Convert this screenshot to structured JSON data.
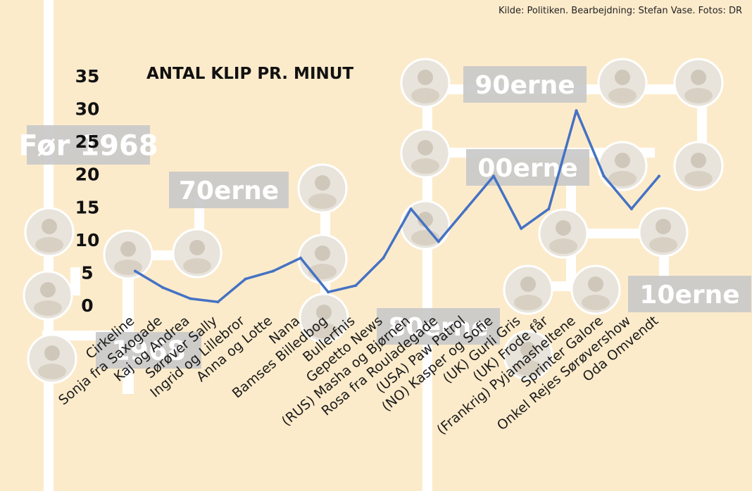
{
  "source": "Kilde: Politiken. Bearbejdning: Stefan Vase. Fotos: DR",
  "decades": [
    "Før 1968",
    "1968",
    "70erne",
    "80erne",
    "90erne",
    "00erne",
    "10erne"
  ],
  "chart_data": {
    "type": "line",
    "title": "ANTAL KLIP PR. MINUT",
    "categories": [
      "Cirkeline",
      "Sonja fra Saxogade",
      "Kaj og Andrea",
      "Sørøver Sally",
      "Ingrid og Lillebror",
      "Anna og Lotte",
      "Nana",
      "Bamses Billedbog",
      "Bullerfnis",
      "Gepetto News",
      "(RUS) Masha og Bjørnen",
      "Rosa fra Rouladegade",
      "(USA) Paw Patrol",
      "(NO) Kasper og Sofie",
      "(UK) Gurli Gris",
      "(UK) Frode får",
      "(Frankrig) Pyjamasheltene",
      "Sprinter Galore",
      "Onkel Rejes Sørøvershow",
      "Oda Omvendt"
    ],
    "values": [
      5,
      2.5,
      0.8,
      0.3,
      3.8,
      5,
      7,
      1.8,
      2.8,
      7,
      14.5,
      9.5,
      14.5,
      19.5,
      11.5,
      14.5,
      29.5,
      19.5,
      14.5,
      19.5
    ],
    "ylim": [
      0,
      35
    ],
    "yticks": [
      0,
      5,
      10,
      15,
      20,
      25,
      30,
      35
    ],
    "grid": false,
    "line_color": "#4472c4"
  }
}
